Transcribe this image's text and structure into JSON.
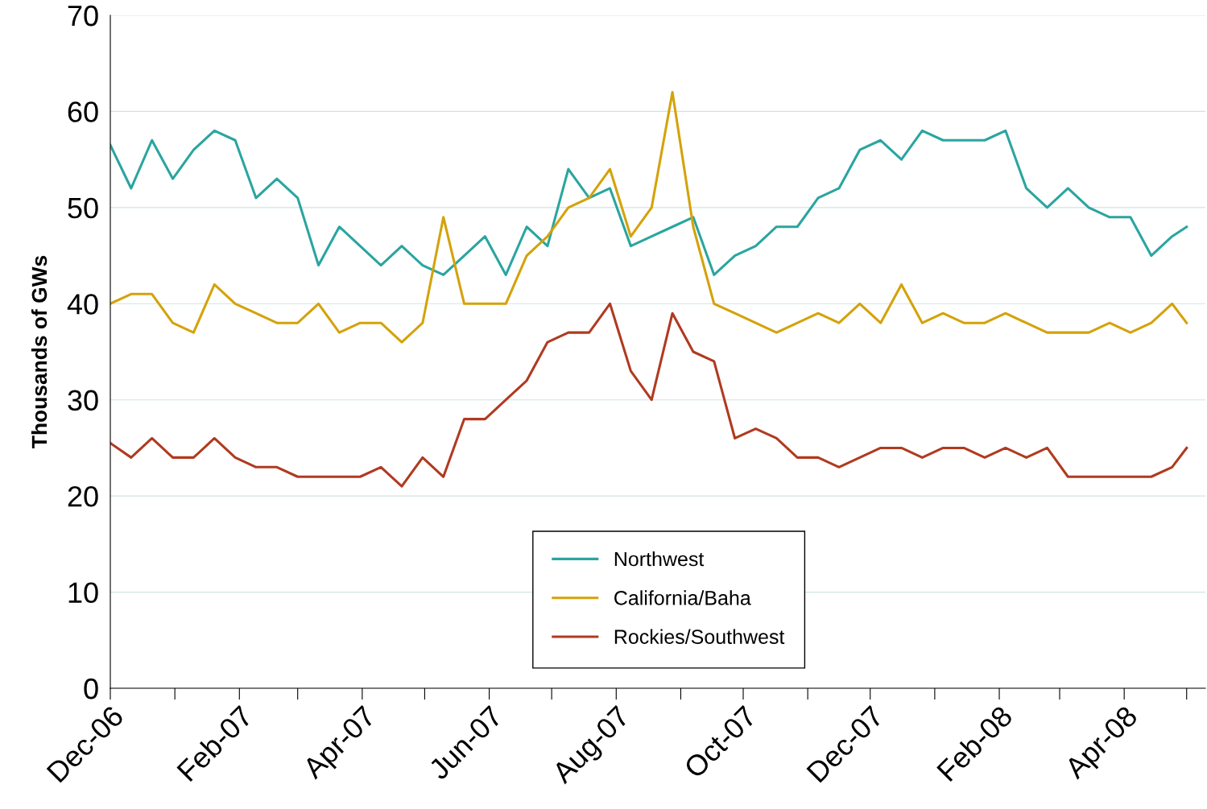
{
  "chart_data": {
    "type": "line",
    "ylabel": "Thousands of GWs",
    "x": [
      "2006-12-01",
      "2006-12-11",
      "2006-12-21",
      "2006-12-31",
      "2007-01-10",
      "2007-01-20",
      "2007-01-30",
      "2007-02-09",
      "2007-02-19",
      "2007-03-01",
      "2007-03-11",
      "2007-03-21",
      "2007-03-31",
      "2007-04-10",
      "2007-04-20",
      "2007-04-30",
      "2007-05-10",
      "2007-05-20",
      "2007-05-30",
      "2007-06-09",
      "2007-06-19",
      "2007-06-29",
      "2007-07-09",
      "2007-07-19",
      "2007-07-29",
      "2007-08-08",
      "2007-08-18",
      "2007-08-28",
      "2007-09-07",
      "2007-09-17",
      "2007-09-27",
      "2007-10-07",
      "2007-10-17",
      "2007-10-27",
      "2007-11-06",
      "2007-11-16",
      "2007-11-26",
      "2007-12-06",
      "2007-12-16",
      "2007-12-26",
      "2008-01-05",
      "2008-01-15",
      "2008-01-25",
      "2008-02-04",
      "2008-02-14",
      "2008-02-24",
      "2008-03-05",
      "2008-03-15",
      "2008-03-25",
      "2008-04-04",
      "2008-04-14",
      "2008-04-24",
      "2008-05-01"
    ],
    "series": [
      {
        "name": "Northwest",
        "color": "#2aa5a0",
        "values": [
          56.5,
          52,
          57,
          53,
          56,
          58,
          57,
          51,
          53,
          51,
          44,
          48,
          46,
          44,
          46,
          44,
          43,
          45,
          47,
          43,
          48,
          46,
          54,
          51,
          52,
          46,
          47,
          48,
          49,
          43,
          45,
          46,
          48,
          48,
          51,
          52,
          56,
          57,
          55,
          58,
          57,
          57,
          57,
          58,
          52,
          50,
          52,
          50,
          49,
          49,
          45,
          47,
          48
        ]
      },
      {
        "name": "California/Baha",
        "color": "#d4a20a",
        "values": [
          40,
          41,
          41,
          38,
          37,
          42,
          40,
          39,
          38,
          38,
          40,
          37,
          38,
          38,
          36,
          38,
          49,
          40,
          40,
          40,
          45,
          47,
          50,
          51,
          54,
          47,
          50,
          62,
          48,
          40,
          39,
          38,
          37,
          38,
          39,
          38,
          40,
          38,
          42,
          38,
          39,
          38,
          38,
          39,
          38,
          37,
          37,
          37,
          38,
          37,
          38,
          40,
          38
        ]
      },
      {
        "name": "Rockies/Southwest",
        "color": "#b03a20",
        "values": [
          25.5,
          24,
          26,
          24,
          24,
          26,
          24,
          23,
          23,
          22,
          22,
          22,
          22,
          23,
          21,
          24,
          22,
          28,
          28,
          30,
          32,
          36,
          37,
          37,
          40,
          33,
          30,
          39,
          35,
          34,
          26,
          27,
          26,
          24,
          24,
          23,
          24,
          25,
          25,
          24,
          25,
          25,
          24,
          25,
          24,
          25,
          22,
          22,
          22,
          22,
          22,
          23,
          25
        ]
      }
    ],
    "xlim": [
      "2006-12-01",
      "2008-05-10"
    ],
    "xticks": [
      {
        "value": "2006-12-01",
        "label": "Dec-06"
      },
      {
        "value": "2007-01-01",
        "label": null
      },
      {
        "value": "2007-02-01",
        "label": "Feb-07"
      },
      {
        "value": "2007-03-01",
        "label": null
      },
      {
        "value": "2007-04-01",
        "label": "Apr-07"
      },
      {
        "value": "2007-05-01",
        "label": null
      },
      {
        "value": "2007-06-01",
        "label": "Jun-07"
      },
      {
        "value": "2007-07-01",
        "label": null
      },
      {
        "value": "2007-08-01",
        "label": "Aug-07"
      },
      {
        "value": "2007-09-01",
        "label": null
      },
      {
        "value": "2007-10-01",
        "label": "Oct-07"
      },
      {
        "value": "2007-11-01",
        "label": null
      },
      {
        "value": "2007-12-01",
        "label": "Dec-07"
      },
      {
        "value": "2008-01-01",
        "label": null
      },
      {
        "value": "2008-02-01",
        "label": "Feb-08"
      },
      {
        "value": "2008-03-01",
        "label": null
      },
      {
        "value": "2008-04-01",
        "label": "Apr-08"
      },
      {
        "value": "2008-05-01",
        "label": null
      }
    ],
    "ylim": [
      0,
      70
    ],
    "yticks": [
      0,
      10,
      20,
      30,
      40,
      50,
      60,
      70
    ],
    "grid": "y",
    "legend": "bottom",
    "marker": "none",
    "line_style": "solid"
  }
}
